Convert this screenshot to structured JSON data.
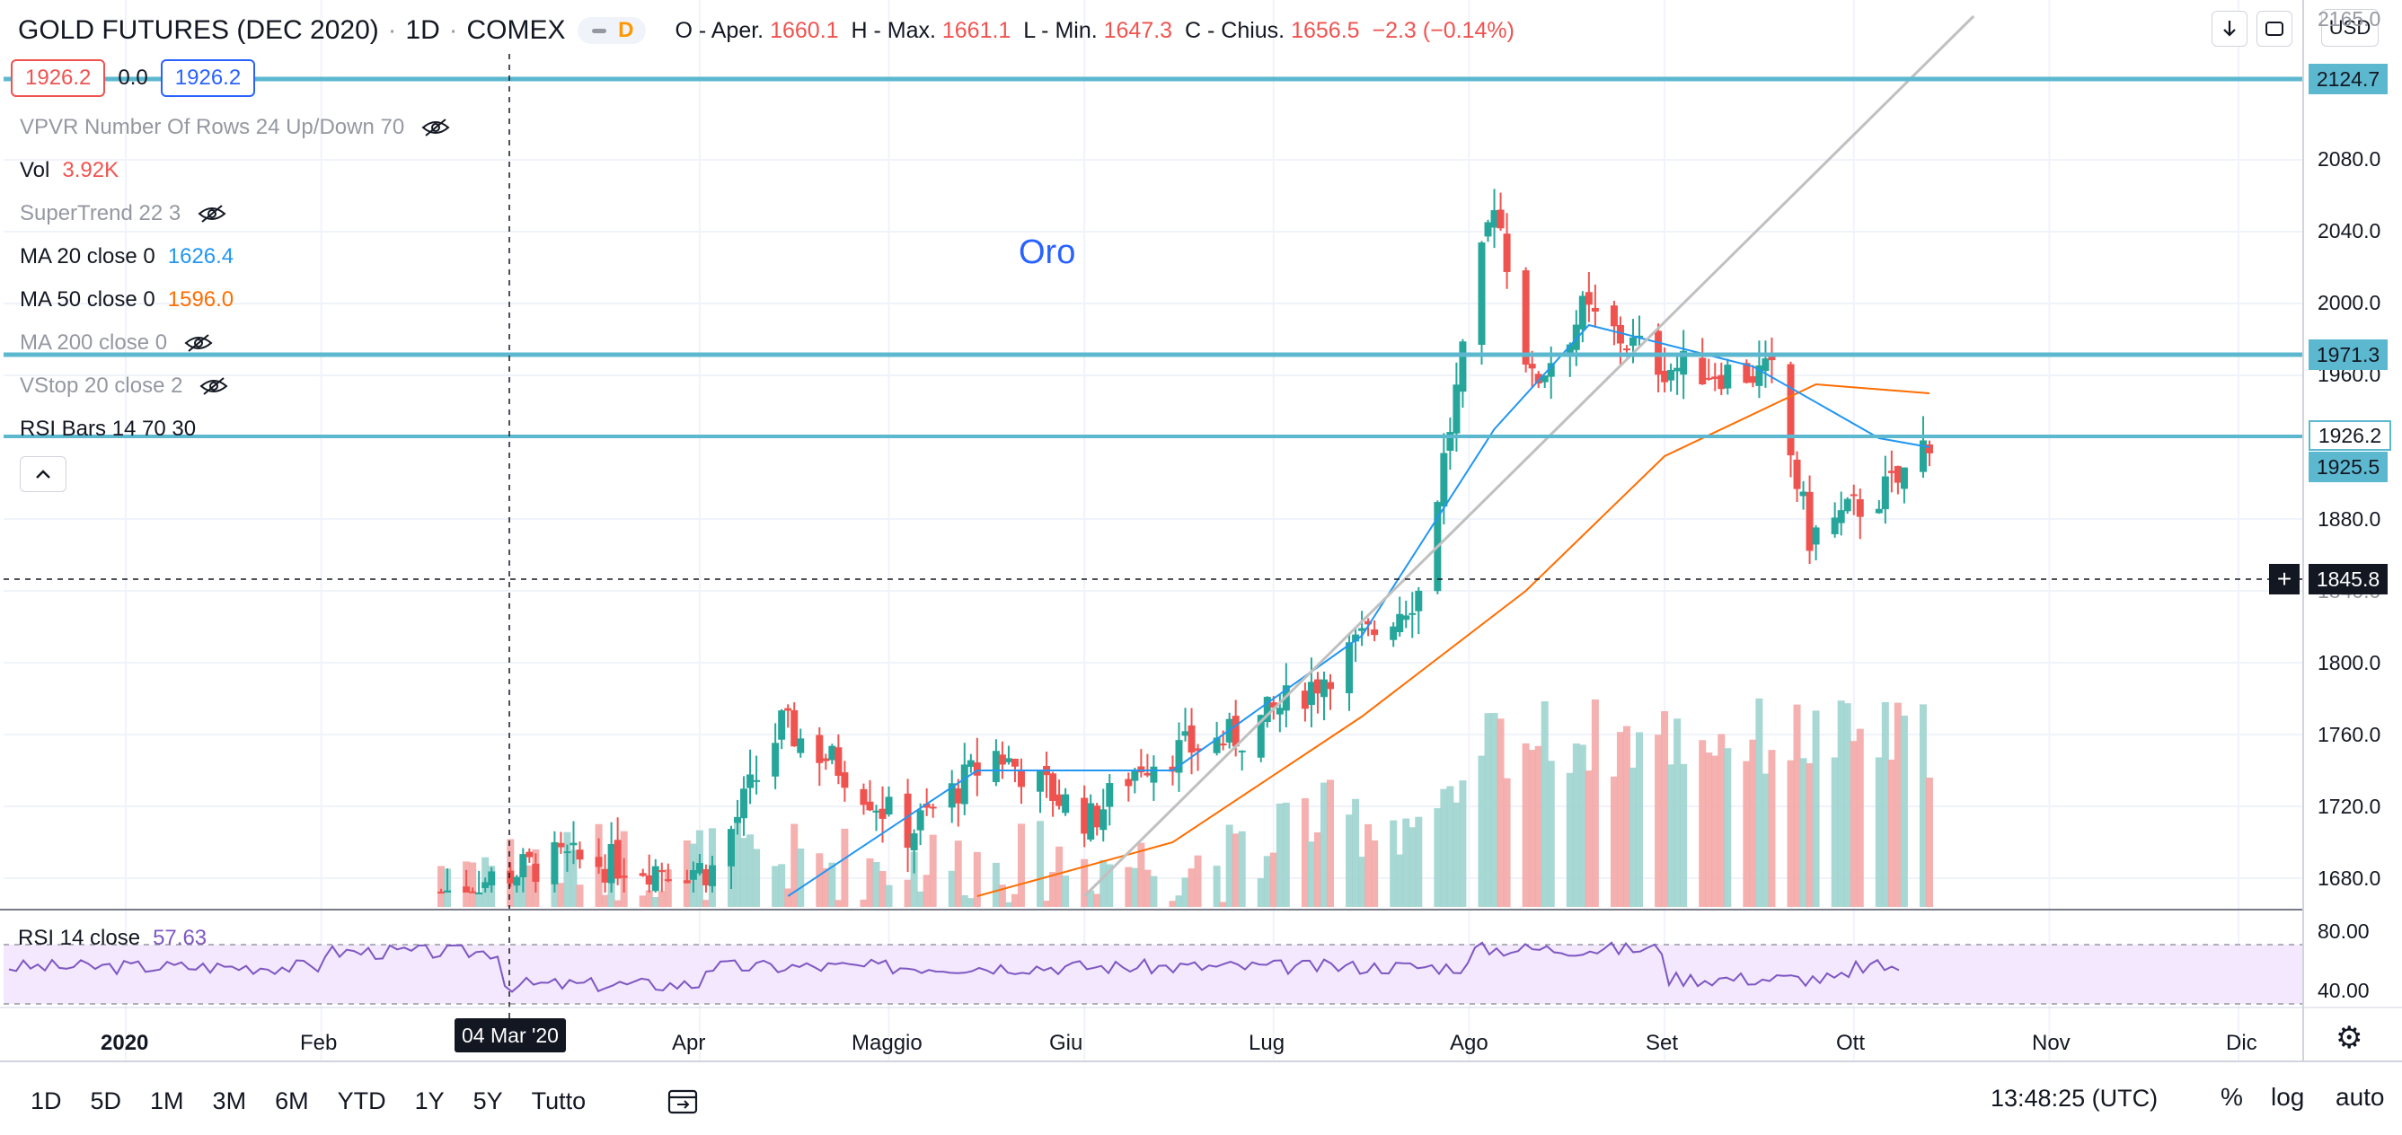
{
  "header": {
    "symbol": "GOLD FUTURES (DEC 2020)",
    "sep1": "·",
    "interval": "1D",
    "sep2": "·",
    "exchange": "COMEX",
    "delay_badge": "D",
    "open_label": "O - Aper.",
    "open_value": "1660.1",
    "high_label": "H - Max.",
    "high_value": "1661.1",
    "low_label": "L - Min.",
    "low_value": "1647.3",
    "close_label": "C - Chius.",
    "close_value": "1656.5",
    "change_value": "−2.3 (−0.14%)",
    "currency": "USD",
    "down_arrow_icon": "arrow-down-icon",
    "fullscreen_icon": "fullscreen-icon"
  },
  "price_row": {
    "sell": "1926.2",
    "spread": "0.0",
    "buy": "1926.2"
  },
  "indicators": [
    {
      "name": "VPVR Number Of Rows 24 Up/Down 70",
      "value": "",
      "hidden": true
    },
    {
      "name": "Vol",
      "value": "3.92K",
      "hidden": false,
      "color": "#ef5350"
    },
    {
      "name": "SuperTrend 22 3",
      "value": "",
      "hidden": true
    },
    {
      "name": "MA 20 close 0",
      "value": "1626.4",
      "hidden": false,
      "color": "#2196f3"
    },
    {
      "name": "MA 50 close 0",
      "value": "1596.0",
      "hidden": false,
      "color": "#ff6d00"
    },
    {
      "name": "MA 200 close 0",
      "value": "",
      "hidden": true
    },
    {
      "name": "VStop 20 close 2",
      "value": "",
      "hidden": true
    },
    {
      "name": "RSI Bars 14 70 30",
      "value": "",
      "hidden": false
    }
  ],
  "annotation": "Oro",
  "price_labels": {
    "top_partial": "2165.0",
    "line_upper": "2124.7",
    "line_mid": "1971.3",
    "last": "1926.2",
    "line_low": "1925.5",
    "crosshair": "1845.8",
    "crosshair_plus": "+"
  },
  "price_axis": [
    "2080.0",
    "2040.0",
    "2000.0",
    "1960.0",
    "1880.0",
    "1840.0",
    "1800.0",
    "1760.0",
    "1720.0",
    "1680.0"
  ],
  "rsi_axis": [
    "80.00",
    "40.00"
  ],
  "rsi": {
    "name": "RSI 14 close",
    "value": "57.63"
  },
  "time_axis": [
    {
      "label": "2020",
      "year": true
    },
    {
      "label": "Feb",
      "year": false
    },
    {
      "label": "Apr",
      "year": false
    },
    {
      "label": "Maggio",
      "year": false
    },
    {
      "label": "Giu",
      "year": false
    },
    {
      "label": "Lug",
      "year": false
    },
    {
      "label": "Ago",
      "year": false
    },
    {
      "label": "Set",
      "year": false
    },
    {
      "label": "Ott",
      "year": false
    },
    {
      "label": "Nov",
      "year": false
    },
    {
      "label": "Dic",
      "year": false
    }
  ],
  "crosshair_date": "04 Mar '20",
  "timeframes": [
    "1D",
    "5D",
    "1M",
    "3M",
    "6M",
    "YTD",
    "1Y",
    "5Y",
    "Tutto"
  ],
  "clock": "13:48:25 (UTC)",
  "scale_buttons": {
    "percent": "%",
    "log": "log",
    "auto": "auto"
  },
  "colors": {
    "up": "#26a69a",
    "down": "#ef5350",
    "ma20": "#2196f3",
    "ma50": "#ff6d00",
    "hline": "#5cb8cf",
    "rsi": "#7e57c2",
    "rsi_band": "#f3e8fd",
    "trend": "#c0c0c0"
  },
  "chart_data": {
    "type": "candlestick",
    "x_range": [
      "2020-01",
      "2020-12"
    ],
    "y_range": [
      1670,
      2160
    ],
    "hlines": [
      2124.7,
      1971.3,
      1925.5
    ],
    "trendline": [
      {
        "date": "2020-06-01",
        "price": 1670
      },
      {
        "date": "2020-10-20",
        "price": 2160
      }
    ],
    "close_path": [
      {
        "date": "2020-02-20",
        "price": 1672
      },
      {
        "date": "2020-03-09",
        "price": 1690
      },
      {
        "date": "2020-04-03",
        "price": 1685
      },
      {
        "date": "2020-04-14",
        "price": 1765
      },
      {
        "date": "2020-04-24",
        "price": 1740
      },
      {
        "date": "2020-05-04",
        "price": 1705
      },
      {
        "date": "2020-05-18",
        "price": 1750
      },
      {
        "date": "2020-06-02",
        "price": 1712
      },
      {
        "date": "2020-06-10",
        "price": 1745
      },
      {
        "date": "2020-06-26",
        "price": 1760
      },
      {
        "date": "2020-07-08",
        "price": 1790
      },
      {
        "date": "2020-07-24",
        "price": 1840
      },
      {
        "date": "2020-08-05",
        "price": 2060
      },
      {
        "date": "2020-08-11",
        "price": 1955
      },
      {
        "date": "2020-08-19",
        "price": 1995
      },
      {
        "date": "2020-09-01",
        "price": 1965
      },
      {
        "date": "2020-09-18",
        "price": 1960
      },
      {
        "date": "2020-09-24",
        "price": 1870
      },
      {
        "date": "2020-10-08",
        "price": 1900
      },
      {
        "date": "2020-10-13",
        "price": 1926
      }
    ],
    "ma20_path": [
      {
        "date": "2020-04-15",
        "price": 1670
      },
      {
        "date": "2020-05-15",
        "price": 1740
      },
      {
        "date": "2020-06-15",
        "price": 1740
      },
      {
        "date": "2020-07-15",
        "price": 1815
      },
      {
        "date": "2020-08-05",
        "price": 1930
      },
      {
        "date": "2020-08-20",
        "price": 1988
      },
      {
        "date": "2020-09-15",
        "price": 1965
      },
      {
        "date": "2020-10-05",
        "price": 1925
      },
      {
        "date": "2020-10-13",
        "price": 1920
      }
    ],
    "ma50_path": [
      {
        "date": "2020-05-15",
        "price": 1670
      },
      {
        "date": "2020-06-15",
        "price": 1700
      },
      {
        "date": "2020-07-15",
        "price": 1770
      },
      {
        "date": "2020-08-10",
        "price": 1840
      },
      {
        "date": "2020-09-01",
        "price": 1915
      },
      {
        "date": "2020-09-25",
        "price": 1955
      },
      {
        "date": "2020-10-13",
        "price": 1950
      }
    ],
    "rsi_range": [
      30,
      85
    ],
    "rsi_levels": [
      70,
      30
    ]
  }
}
